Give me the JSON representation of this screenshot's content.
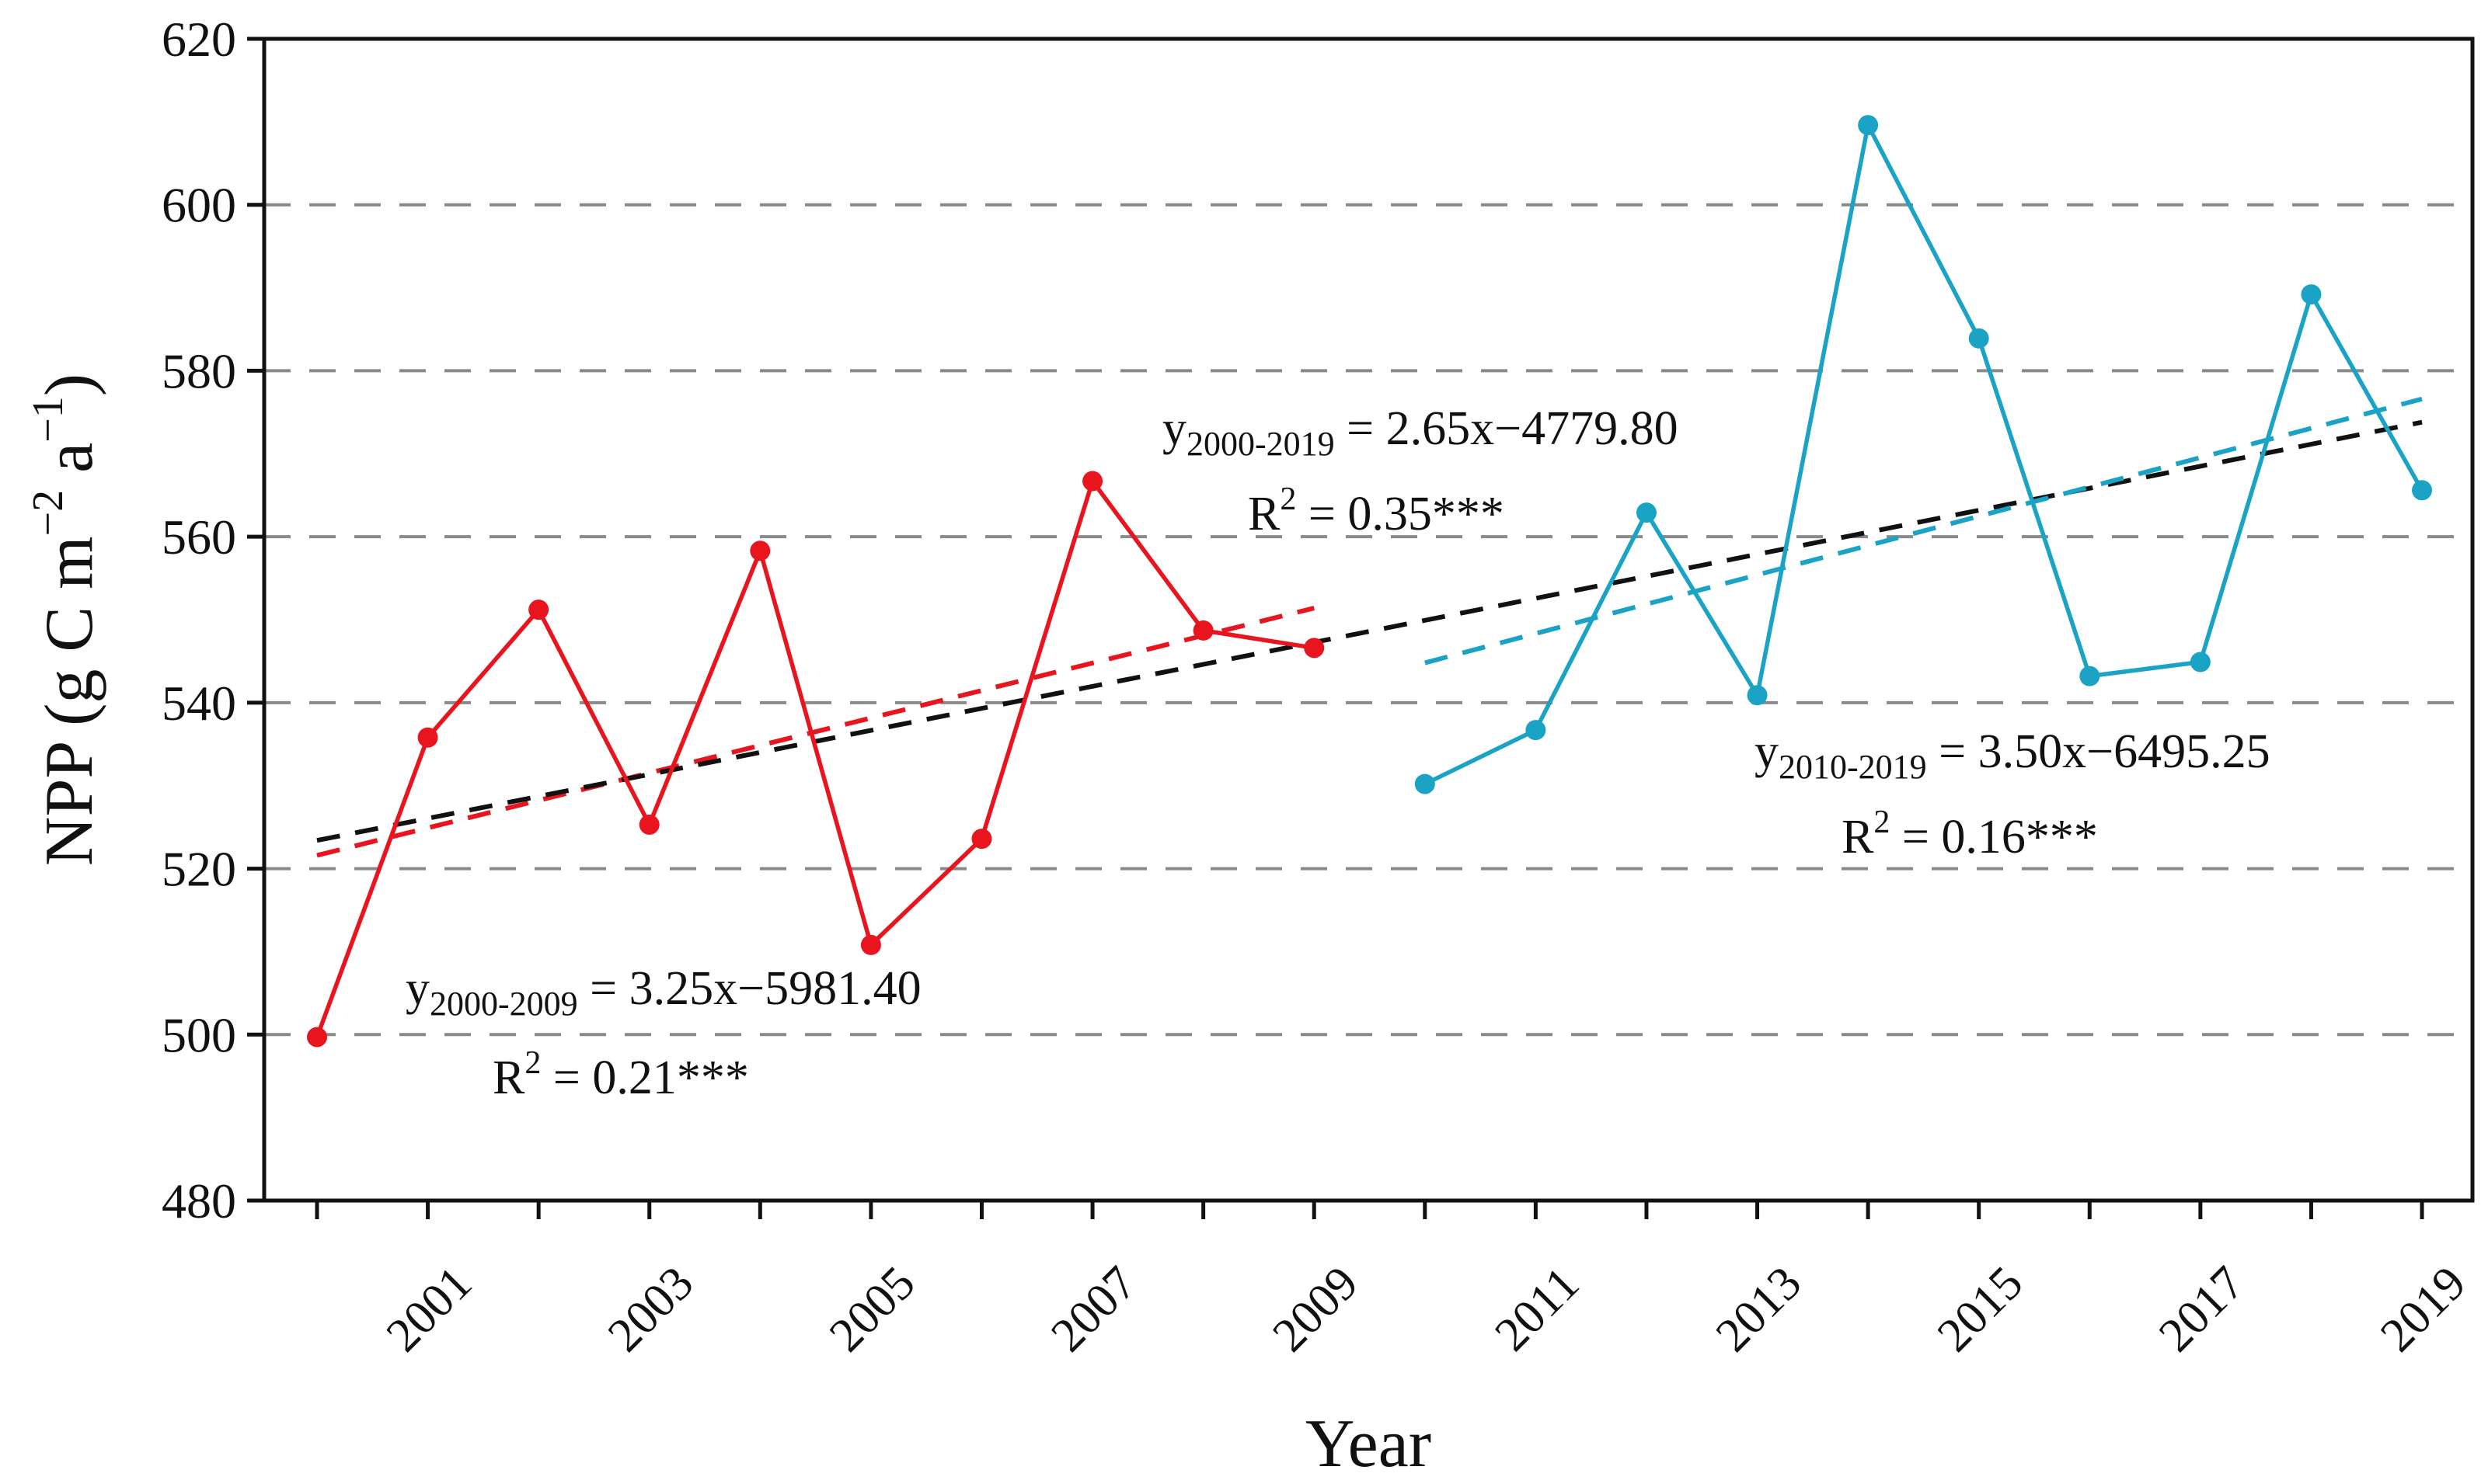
{
  "chart_data": {
    "type": "line",
    "xlabel": "Year",
    "ylabel_main": "NPP (g C m",
    "ylabel_sup1": "−2",
    "ylabel_mid": " a",
    "ylabel_sup2": "−1",
    "ylabel_end": ")",
    "ylim": [
      480,
      620
    ],
    "yticks": [
      480,
      500,
      520,
      540,
      560,
      580,
      600,
      620
    ],
    "yticks_labels": [
      "480",
      "500",
      "520",
      "540",
      "560",
      "580",
      "600",
      "620"
    ],
    "xlim": [
      2000,
      2019
    ],
    "xticks": [
      2000,
      2001,
      2002,
      2003,
      2004,
      2005,
      2006,
      2007,
      2008,
      2009,
      2010,
      2011,
      2012,
      2013,
      2014,
      2015,
      2016,
      2017,
      2018,
      2019
    ],
    "xtick_labels": [
      "2001",
      "2003",
      "2005",
      "2007",
      "2009",
      "2011",
      "2013",
      "2015",
      "2017",
      "2019"
    ],
    "gridlines": [
      500,
      520,
      540,
      560,
      580,
      600
    ],
    "series": [
      {
        "name": "NPP 2000-2009",
        "color": "#e8141e",
        "x": [
          2000,
          2001,
          2002,
          2003,
          2004,
          2005,
          2006,
          2007,
          2008,
          2009
        ],
        "values": [
          499.7,
          535.8,
          551.2,
          525.3,
          558.3,
          510.8,
          523.6,
          566.7,
          548.7,
          546.6
        ]
      },
      {
        "name": "NPP 2010-2019",
        "color": "#1ba3c6",
        "x": [
          2010,
          2011,
          2012,
          2013,
          2014,
          2015,
          2016,
          2017,
          2018,
          2019
        ],
        "values": [
          530.2,
          536.7,
          562.9,
          540.9,
          609.6,
          583.9,
          543.2,
          544.9,
          589.2,
          565.6
        ]
      }
    ],
    "trends": [
      {
        "name": "trend-2000-2009",
        "color": "#e8141e",
        "x": [
          2000,
          2009
        ],
        "slope": 3.25,
        "intercept": -5981.4,
        "y_start": 521.6,
        "y_end": 551.4
      },
      {
        "name": "trend-2000-2019",
        "color": "#111111",
        "x": [
          2000,
          2019
        ],
        "slope": 2.65,
        "intercept": -4779.8,
        "y_start": 523.4,
        "y_end": 573.8
      },
      {
        "name": "trend-2010-2019",
        "color": "#1ba3c6",
        "x": [
          2010,
          2019
        ],
        "slope": 3.5,
        "intercept": -6495.25,
        "y_start": 544.8,
        "y_end": 576.6
      }
    ],
    "annotations": {
      "eq_2000_2009": {
        "lead": "y",
        "sub": "2000-2009",
        "rest": " = 3.25x−5981.40",
        "r2_lead": "R",
        "r2_sup": "2",
        "r2_rest": " = 0.21***"
      },
      "eq_2000_2019": {
        "lead": "y",
        "sub": "2000-2019",
        "rest": " = 2.65x−4779.80",
        "r2_lead": "R",
        "r2_sup": "2",
        "r2_rest": " = 0.35***"
      },
      "eq_2010_2019": {
        "lead": "y",
        "sub": "2010-2019",
        "rest": " = 3.50x−6495.25",
        "r2_lead": "R",
        "r2_sup": "2",
        "r2_rest": " = 0.16***"
      }
    }
  }
}
